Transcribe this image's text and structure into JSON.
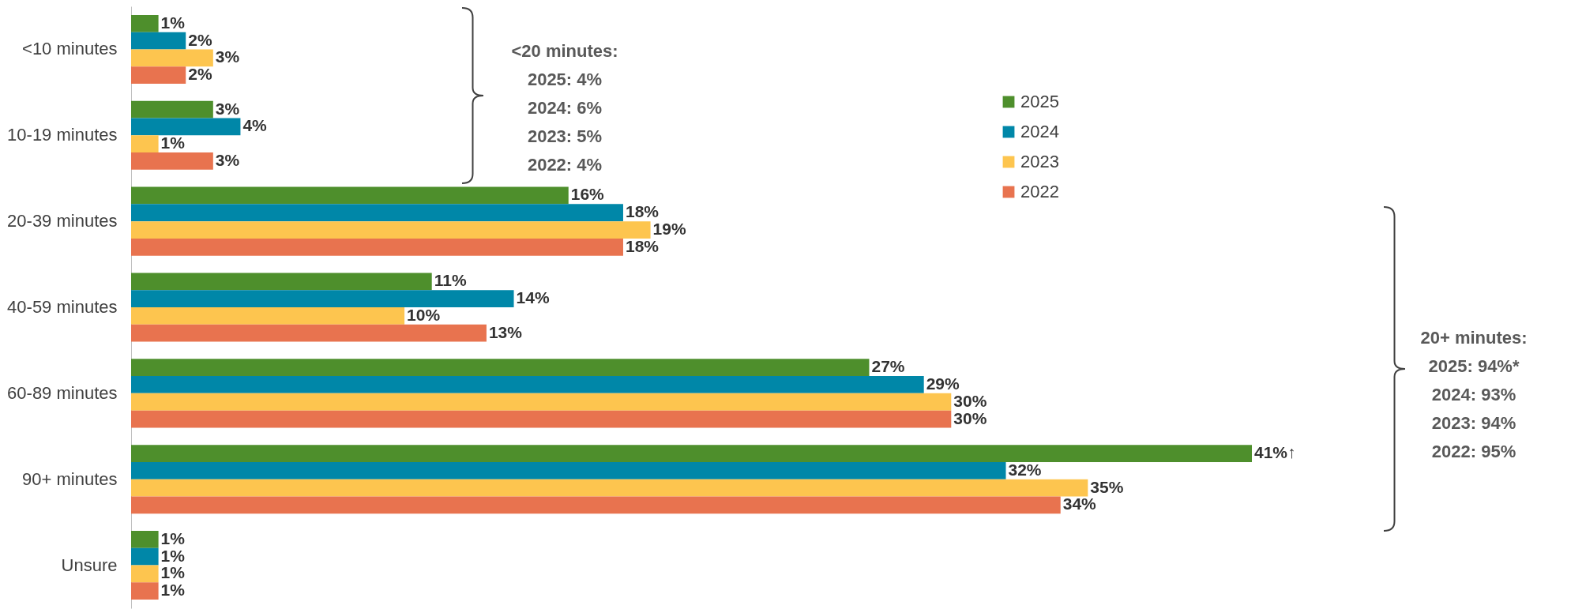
{
  "chart_data": {
    "type": "bar",
    "orientation": "horizontal",
    "legend": "top right",
    "categories": [
      "<10 minutes",
      "10-19 minutes",
      "20-39 minutes",
      "40-59 minutes",
      "60-89 minutes",
      "90+ minutes",
      "Unsure"
    ],
    "series": [
      {
        "name": "2025",
        "color": "#4e8f2c",
        "values": [
          1,
          3,
          16,
          11,
          27,
          41,
          1
        ],
        "value_labels": [
          "1%",
          "3%",
          "16%",
          "11%",
          "27%",
          "41%↑",
          "1%"
        ]
      },
      {
        "name": "2024",
        "color": "#0087a8",
        "values": [
          2,
          4,
          18,
          14,
          29,
          32,
          1
        ],
        "value_labels": [
          "2%",
          "4%",
          "18%",
          "14%",
          "29%",
          "32%",
          "1%"
        ]
      },
      {
        "name": "2023",
        "color": "#fdc54f",
        "values": [
          3,
          1,
          19,
          10,
          30,
          35,
          1
        ],
        "value_labels": [
          "3%",
          "1%",
          "19%",
          "10%",
          "30%",
          "35%",
          "1%"
        ]
      },
      {
        "name": "2022",
        "color": "#e8734f",
        "values": [
          2,
          3,
          18,
          13,
          30,
          34,
          1
        ],
        "value_labels": [
          "2%",
          "3%",
          "18%",
          "13%",
          "30%",
          "34%",
          "1%"
        ]
      }
    ],
    "annotations": [
      "<20 minutes:\n2025: 4%\n2024: 6%\n2023: 5%\n2022: 4%",
      "20+ minutes:\n2025: 94%*\n2024: 93%\n2023: 94%\n2022: 95%"
    ]
  }
}
